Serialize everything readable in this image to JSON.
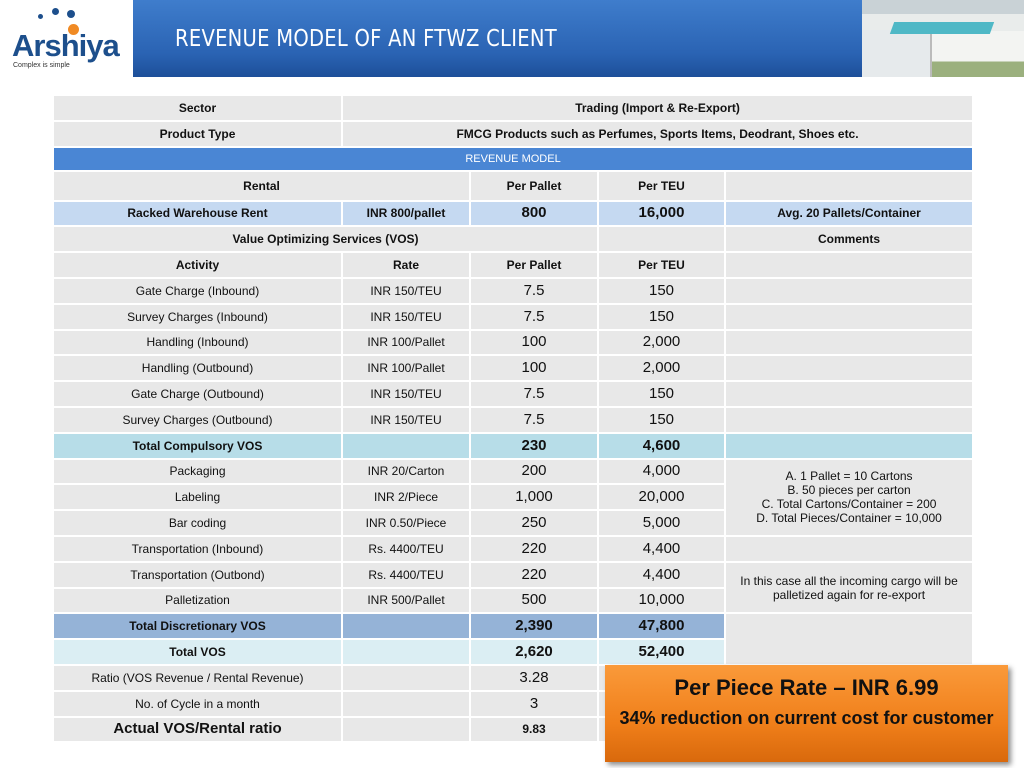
{
  "header": {
    "logo_text": "Arshiya",
    "logo_tagline": "Complex is simple",
    "title": "REVENUE MODEL OF AN FTWZ CLIENT"
  },
  "table": {
    "sector_label": "Sector",
    "sector_value": "Trading (Import & Re-Export)",
    "product_label": "Product Type",
    "product_value": "FMCG Products such as Perfumes, Sports Items, Deodrant, Shoes etc.",
    "section": "REVENUE MODEL",
    "rental_header": {
      "label": "Rental",
      "per_pallet": "Per Pallet",
      "per_teu": "Per TEU"
    },
    "racked": {
      "activity": "Racked Warehouse Rent",
      "rate": "INR 800/pallet",
      "per_pallet": "800",
      "per_teu": "16,000",
      "comment": "Avg. 20 Pallets/Container"
    },
    "vos_header": {
      "label": "Value Optimizing Services (VOS)",
      "comments": "Comments"
    },
    "columns": {
      "activity": "Activity",
      "rate": "Rate",
      "per_pallet": "Per Pallet",
      "per_teu": "Per TEU"
    },
    "compulsory": [
      {
        "activity": "Gate Charge (Inbound)",
        "rate": "INR 150/TEU",
        "per_pallet": "7.5",
        "per_teu": "150"
      },
      {
        "activity": "Survey Charges (Inbound)",
        "rate": "INR 150/TEU",
        "per_pallet": "7.5",
        "per_teu": "150"
      },
      {
        "activity": "Handling (Inbound)",
        "rate": "INR 100/Pallet",
        "per_pallet": "100",
        "per_teu": "2,000"
      },
      {
        "activity": "Handling (Outbound)",
        "rate": "INR 100/Pallet",
        "per_pallet": "100",
        "per_teu": "2,000"
      },
      {
        "activity": "Gate Charge (Outbound)",
        "rate": "INR 150/TEU",
        "per_pallet": "7.5",
        "per_teu": "150"
      },
      {
        "activity": "Survey Charges (Outbound)",
        "rate": "INR 150/TEU",
        "per_pallet": "7.5",
        "per_teu": "150"
      }
    ],
    "total_compulsory": {
      "label": "Total Compulsory VOS",
      "per_pallet": "230",
      "per_teu": "4,600"
    },
    "discretionary": [
      {
        "activity": "Packaging",
        "rate": "INR 20/Carton",
        "per_pallet": "200",
        "per_teu": "4,000"
      },
      {
        "activity": "Labeling",
        "rate": "INR 2/Piece",
        "per_pallet": "1,000",
        "per_teu": "20,000"
      },
      {
        "activity": "Bar coding",
        "rate": "INR 0.50/Piece",
        "per_pallet": "250",
        "per_teu": "5,000"
      },
      {
        "activity": "Transportation (Inbound)",
        "rate": "Rs. 4400/TEU",
        "per_pallet": "220",
        "per_teu": "4,400"
      },
      {
        "activity": "Transportation (Outbond)",
        "rate": "Rs. 4400/TEU",
        "per_pallet": "220",
        "per_teu": "4,400"
      },
      {
        "activity": "Palletization",
        "rate": "INR 500/Pallet",
        "per_pallet": "500",
        "per_teu": "10,000"
      }
    ],
    "comment_packaging": [
      "A. 1 Pallet = 10 Cartons",
      "B. 50 pieces per carton",
      "C. Total Cartons/Container = 200",
      "D. Total Pieces/Container = 10,000"
    ],
    "comment_transport": "In this case all the incoming cargo will  be palletized again for re-export",
    "total_discretionary": {
      "label": "Total Discretionary VOS",
      "per_pallet": "2,390",
      "per_teu": "47,800"
    },
    "total_vos": {
      "label": "Total VOS",
      "per_pallet": "2,620",
      "per_teu": "52,400"
    },
    "ratio": {
      "label": "Ratio (VOS Revenue / Rental Revenue)",
      "value": "3.28"
    },
    "cycles": {
      "label": "No. of Cycle in a month",
      "value": "3"
    },
    "actual": {
      "label": "Actual VOS/Rental ratio",
      "value": "9.83"
    }
  },
  "callout": {
    "line1": "Per Piece Rate – INR 6.99",
    "line2": "34% reduction on current cost for customer"
  },
  "colors": {
    "header_blue": "#2a63b3",
    "section_blue": "#4a86d4",
    "callout_orange": "#f07f1a"
  }
}
